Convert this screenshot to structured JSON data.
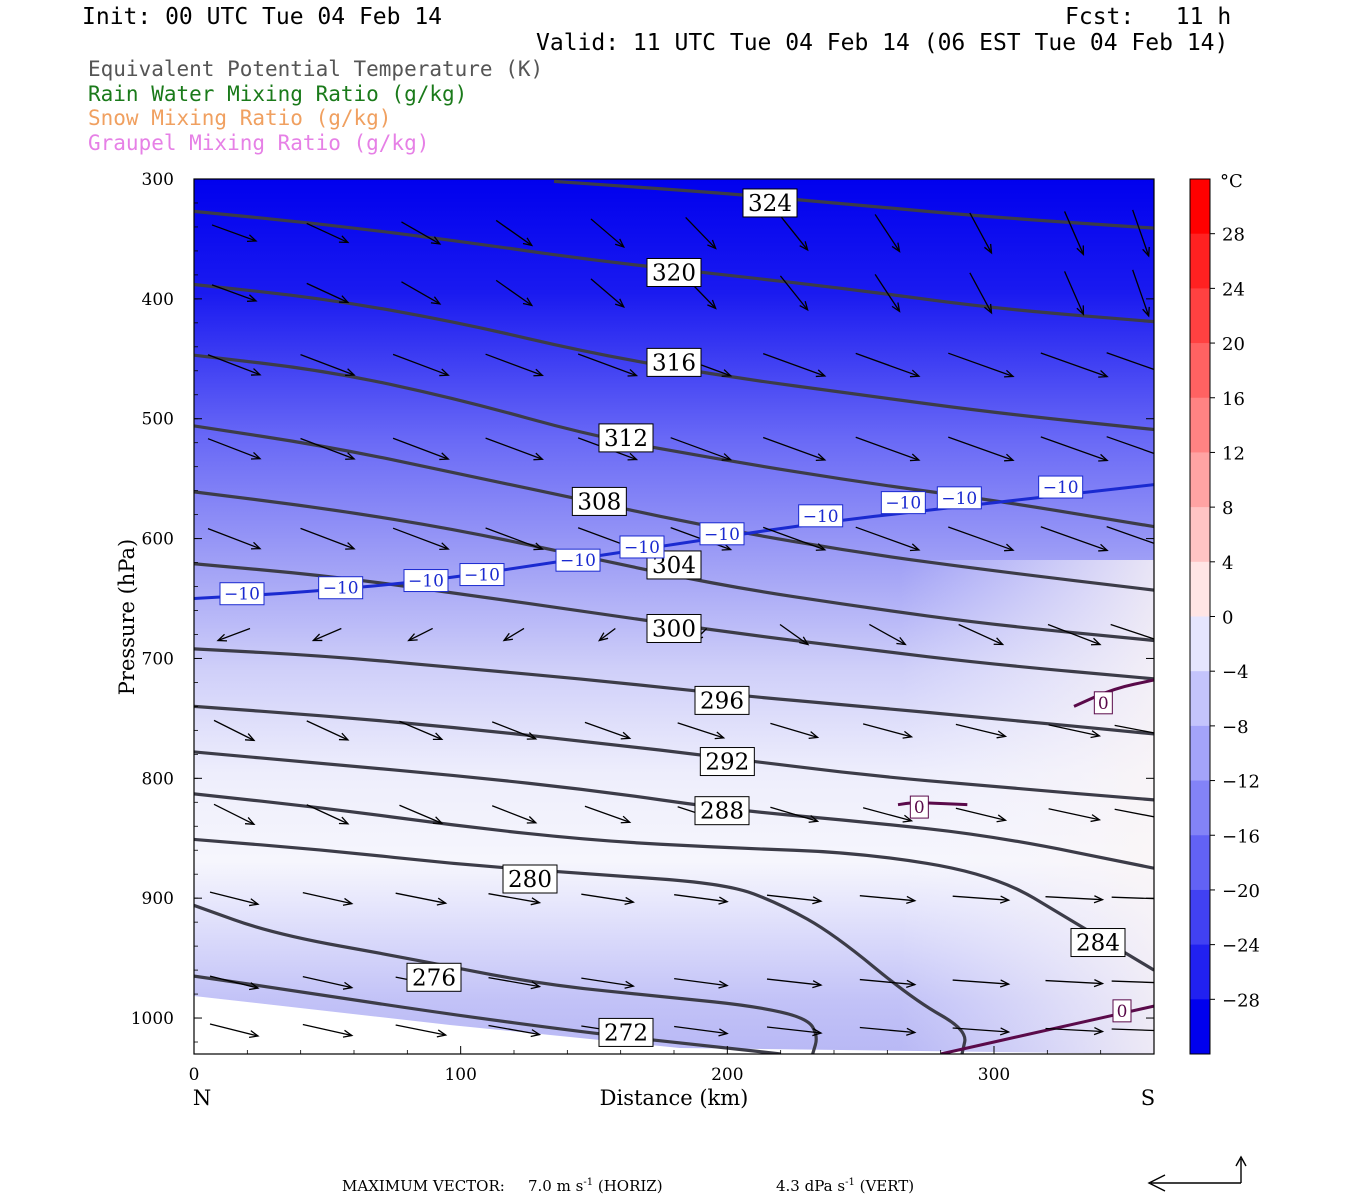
{
  "header": {
    "init": "Init: 00 UTC Tue 04 Feb 14",
    "fcst": "Fcst:   11 h",
    "valid": "Valid: 11 UTC Tue 04 Feb 14 (06 EST Tue 04 Feb 14)"
  },
  "legend": [
    {
      "label": "Equivalent Potential Temperature (K)",
      "color": "#555555"
    },
    {
      "label": "Rain Water Mixing Ratio (g/kg)",
      "color": "#1a7a1a"
    },
    {
      "label": "Snow Mixing Ratio (g/kg)",
      "color": "#f0a060"
    },
    {
      "label": "Graupel Mixing Ratio (g/kg)",
      "color": "#e680e6"
    }
  ],
  "footer": {
    "max_label": "MAXIMUM VECTOR:",
    "horiz": "7.0 m s",
    "horiz_unit": "(HORIZ)",
    "vert": "4.3 dPa s",
    "vert_unit": "(VERT)",
    "exp": "-1"
  },
  "chart_data": {
    "type": "cross-section",
    "xlabel": "Distance (km)",
    "ylabel": "Pressure (hPa)",
    "xlim": [
      0,
      360
    ],
    "ylim": [
      300,
      1030
    ],
    "x_ticks": [
      0,
      100,
      200,
      300
    ],
    "y_ticks": [
      300,
      400,
      500,
      600,
      700,
      800,
      900,
      1000
    ],
    "x_end_labels": {
      "left": "N",
      "right": "S"
    },
    "colorbar": {
      "unit": "°C",
      "labels": [
        "28",
        "24",
        "20",
        "16",
        "12",
        "8",
        "4",
        "0",
        "−4",
        "−8",
        "−12",
        "−16",
        "−20",
        "−24",
        "−28"
      ],
      "values": [
        28,
        24,
        20,
        16,
        12,
        8,
        4,
        0,
        -4,
        -8,
        -12,
        -16,
        -20,
        -24,
        -28
      ]
    },
    "theta_e_contours": [
      {
        "label": "324",
        "x": [
          135,
          200,
          250,
          300,
          360
        ],
        "p": [
          302,
          312,
          322,
          332,
          341
        ]
      },
      {
        "label": "320",
        "x": [
          0,
          50,
          100,
          150,
          200,
          250,
          300,
          360
        ],
        "p": [
          327,
          338,
          352,
          368,
          380,
          393,
          408,
          419
        ]
      },
      {
        "label": "316",
        "x": [
          0,
          50,
          100,
          150,
          200,
          250,
          300,
          360
        ],
        "p": [
          388,
          400,
          420,
          446,
          465,
          480,
          495,
          509
        ]
      },
      {
        "label": "312",
        "x": [
          0,
          50,
          100,
          150,
          200,
          250,
          300,
          360
        ],
        "p": [
          447,
          460,
          484,
          515,
          535,
          553,
          568,
          590
        ]
      },
      {
        "label": "308",
        "x": [
          0,
          50,
          100,
          150,
          200,
          250,
          300,
          360
        ],
        "p": [
          506,
          523,
          546,
          570,
          593,
          612,
          627,
          643
        ]
      },
      {
        "label": "304",
        "x": [
          0,
          50,
          100,
          150,
          200,
          250,
          300,
          360
        ],
        "p": [
          561,
          575,
          593,
          617,
          640,
          657,
          672,
          685
        ]
      },
      {
        "label": "300",
        "x": [
          0,
          50,
          100,
          150,
          200,
          250,
          300,
          360
        ],
        "p": [
          621,
          631,
          646,
          662,
          678,
          692,
          705,
          717
        ]
      },
      {
        "label": "296",
        "x": [
          0,
          50,
          100,
          150,
          200,
          250,
          300,
          360
        ],
        "p": [
          692,
          698,
          708,
          718,
          730,
          740,
          750,
          763
        ]
      },
      {
        "label": "292",
        "x": [
          0,
          50,
          100,
          150,
          200,
          250,
          300,
          360
        ],
        "p": [
          740,
          748,
          758,
          770,
          783,
          797,
          807,
          818
        ]
      },
      {
        "label": "288",
        "x": [
          0,
          50,
          100,
          150,
          200,
          250,
          300,
          360
        ],
        "p": [
          778,
          788,
          798,
          810,
          826,
          836,
          848,
          875
        ]
      },
      {
        "label": "284",
        "x": [
          0,
          50,
          100,
          150,
          200,
          250,
          300,
          330,
          360
        ],
        "p": [
          813,
          825,
          840,
          852,
          858,
          862,
          880,
          920,
          960
        ]
      },
      {
        "label": "280",
        "x": [
          0,
          50,
          100,
          150,
          200,
          220,
          240,
          270,
          290,
          288
        ],
        "p": [
          851,
          860,
          872,
          880,
          888,
          905,
          930,
          985,
          1010,
          1030
        ]
      },
      {
        "label": "276",
        "x": [
          0,
          30,
          80,
          130,
          180,
          210,
          230,
          234,
          232
        ],
        "p": [
          906,
          930,
          950,
          972,
          983,
          990,
          1000,
          1015,
          1030
        ]
      },
      {
        "label": "272",
        "x": [
          0,
          40,
          90,
          150,
          200,
          220
        ],
        "p": [
          965,
          978,
          995,
          1013,
          1025,
          1030
        ]
      }
    ],
    "temperature_contours": [
      {
        "label": "−10",
        "x": [
          0,
          40,
          90,
          140,
          180,
          230,
          280,
          340,
          360
        ],
        "p": [
          650,
          645,
          635,
          618,
          605,
          588,
          575,
          560,
          555
        ]
      },
      {
        "label": "0",
        "x": [
          264,
          270,
          290
        ],
        "p": [
          822,
          820,
          822
        ]
      },
      {
        "label": "0",
        "x": [
          330,
          345,
          360
        ],
        "p": [
          740,
          725,
          718
        ]
      },
      {
        "label": "0",
        "x": [
          280,
          320,
          360
        ],
        "p": [
          1030,
          1010,
          990
        ]
      }
    ],
    "contour_label_positions": [
      {
        "text": "324",
        "x": 216,
        "p": 320
      },
      {
        "text": "320",
        "x": 180,
        "p": 378
      },
      {
        "text": "316",
        "x": 180,
        "p": 453
      },
      {
        "text": "312",
        "x": 162,
        "p": 516
      },
      {
        "text": "308",
        "x": 152,
        "p": 569
      },
      {
        "text": "304",
        "x": 180,
        "p": 622
      },
      {
        "text": "300",
        "x": 180,
        "p": 675
      },
      {
        "text": "296",
        "x": 198,
        "p": 735
      },
      {
        "text": "292",
        "x": 200,
        "p": 786
      },
      {
        "text": "288",
        "x": 198,
        "p": 827
      },
      {
        "text": "280",
        "x": 126,
        "p": 884
      },
      {
        "text": "284",
        "x": 339,
        "p": 937
      },
      {
        "text": "276",
        "x": 90,
        "p": 966
      },
      {
        "text": "272",
        "x": 162,
        "p": 1012
      }
    ],
    "temperature_label_positions": [
      {
        "text": "−10",
        "x": 18,
        "p": 646
      },
      {
        "text": "−10",
        "x": 55,
        "p": 641
      },
      {
        "text": "−10",
        "x": 87,
        "p": 635
      },
      {
        "text": "−10",
        "x": 108,
        "p": 630
      },
      {
        "text": "−10",
        "x": 144,
        "p": 618
      },
      {
        "text": "−10",
        "x": 168,
        "p": 607
      },
      {
        "text": "−10",
        "x": 198,
        "p": 596
      },
      {
        "text": "−10",
        "x": 235,
        "p": 581
      },
      {
        "text": "−10",
        "x": 266,
        "p": 570
      },
      {
        "text": "−10",
        "x": 287,
        "p": 566
      },
      {
        "text": "−10",
        "x": 325,
        "p": 557
      },
      {
        "text": "0",
        "x": 272,
        "p": 824
      },
      {
        "text": "0",
        "x": 341,
        "p": 737
      },
      {
        "text": "0",
        "x": 348,
        "p": 994
      }
    ]
  }
}
